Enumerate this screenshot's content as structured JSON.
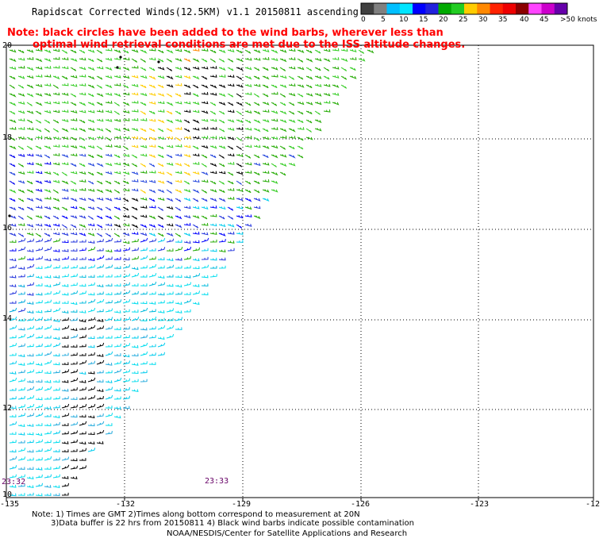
{
  "title": "Rapidscat Corrected Winds(12.5KM) v1.1 20150811 ascending",
  "note": {
    "line1": "Note: black circles have been added to the wind barbs, wherever less than",
    "line2": "optimal wind retrieval conditions are met due to the ISS altitude changes."
  },
  "legend": {
    "labels": [
      "0",
      "5",
      "10",
      "15",
      "20",
      "25",
      "30",
      "35",
      "40",
      "45",
      ">50 knots"
    ],
    "colors": [
      "#404040",
      "#808080",
      "#00bfff",
      "#00e5ff",
      "#0000ff",
      "#2222dd",
      "#00aa00",
      "#22cc22",
      "#ffcc00",
      "#ff8800",
      "#ff2200",
      "#ee0000",
      "#8b0000",
      "#ff44ff",
      "#cc00cc",
      "#6600aa"
    ]
  },
  "axes": {
    "x_ticks": [
      "-135",
      "-132",
      "-129",
      "-126",
      "-123",
      "-12"
    ],
    "y_ticks": [
      "20",
      "18",
      "16",
      "14",
      "12",
      "10"
    ]
  },
  "times": [
    "23:32",
    "23:33"
  ],
  "footer": {
    "line1": "Note: 1) Times are GMT 2)Times along bottom correspond to measurement at 20N",
    "line2": "3)Data buffer is 22 hrs from 20150811 4) Black wind barbs indicate possible contamination",
    "line3": "NOAA/NESDIS/Center for Satellite Applications and Research"
  }
}
